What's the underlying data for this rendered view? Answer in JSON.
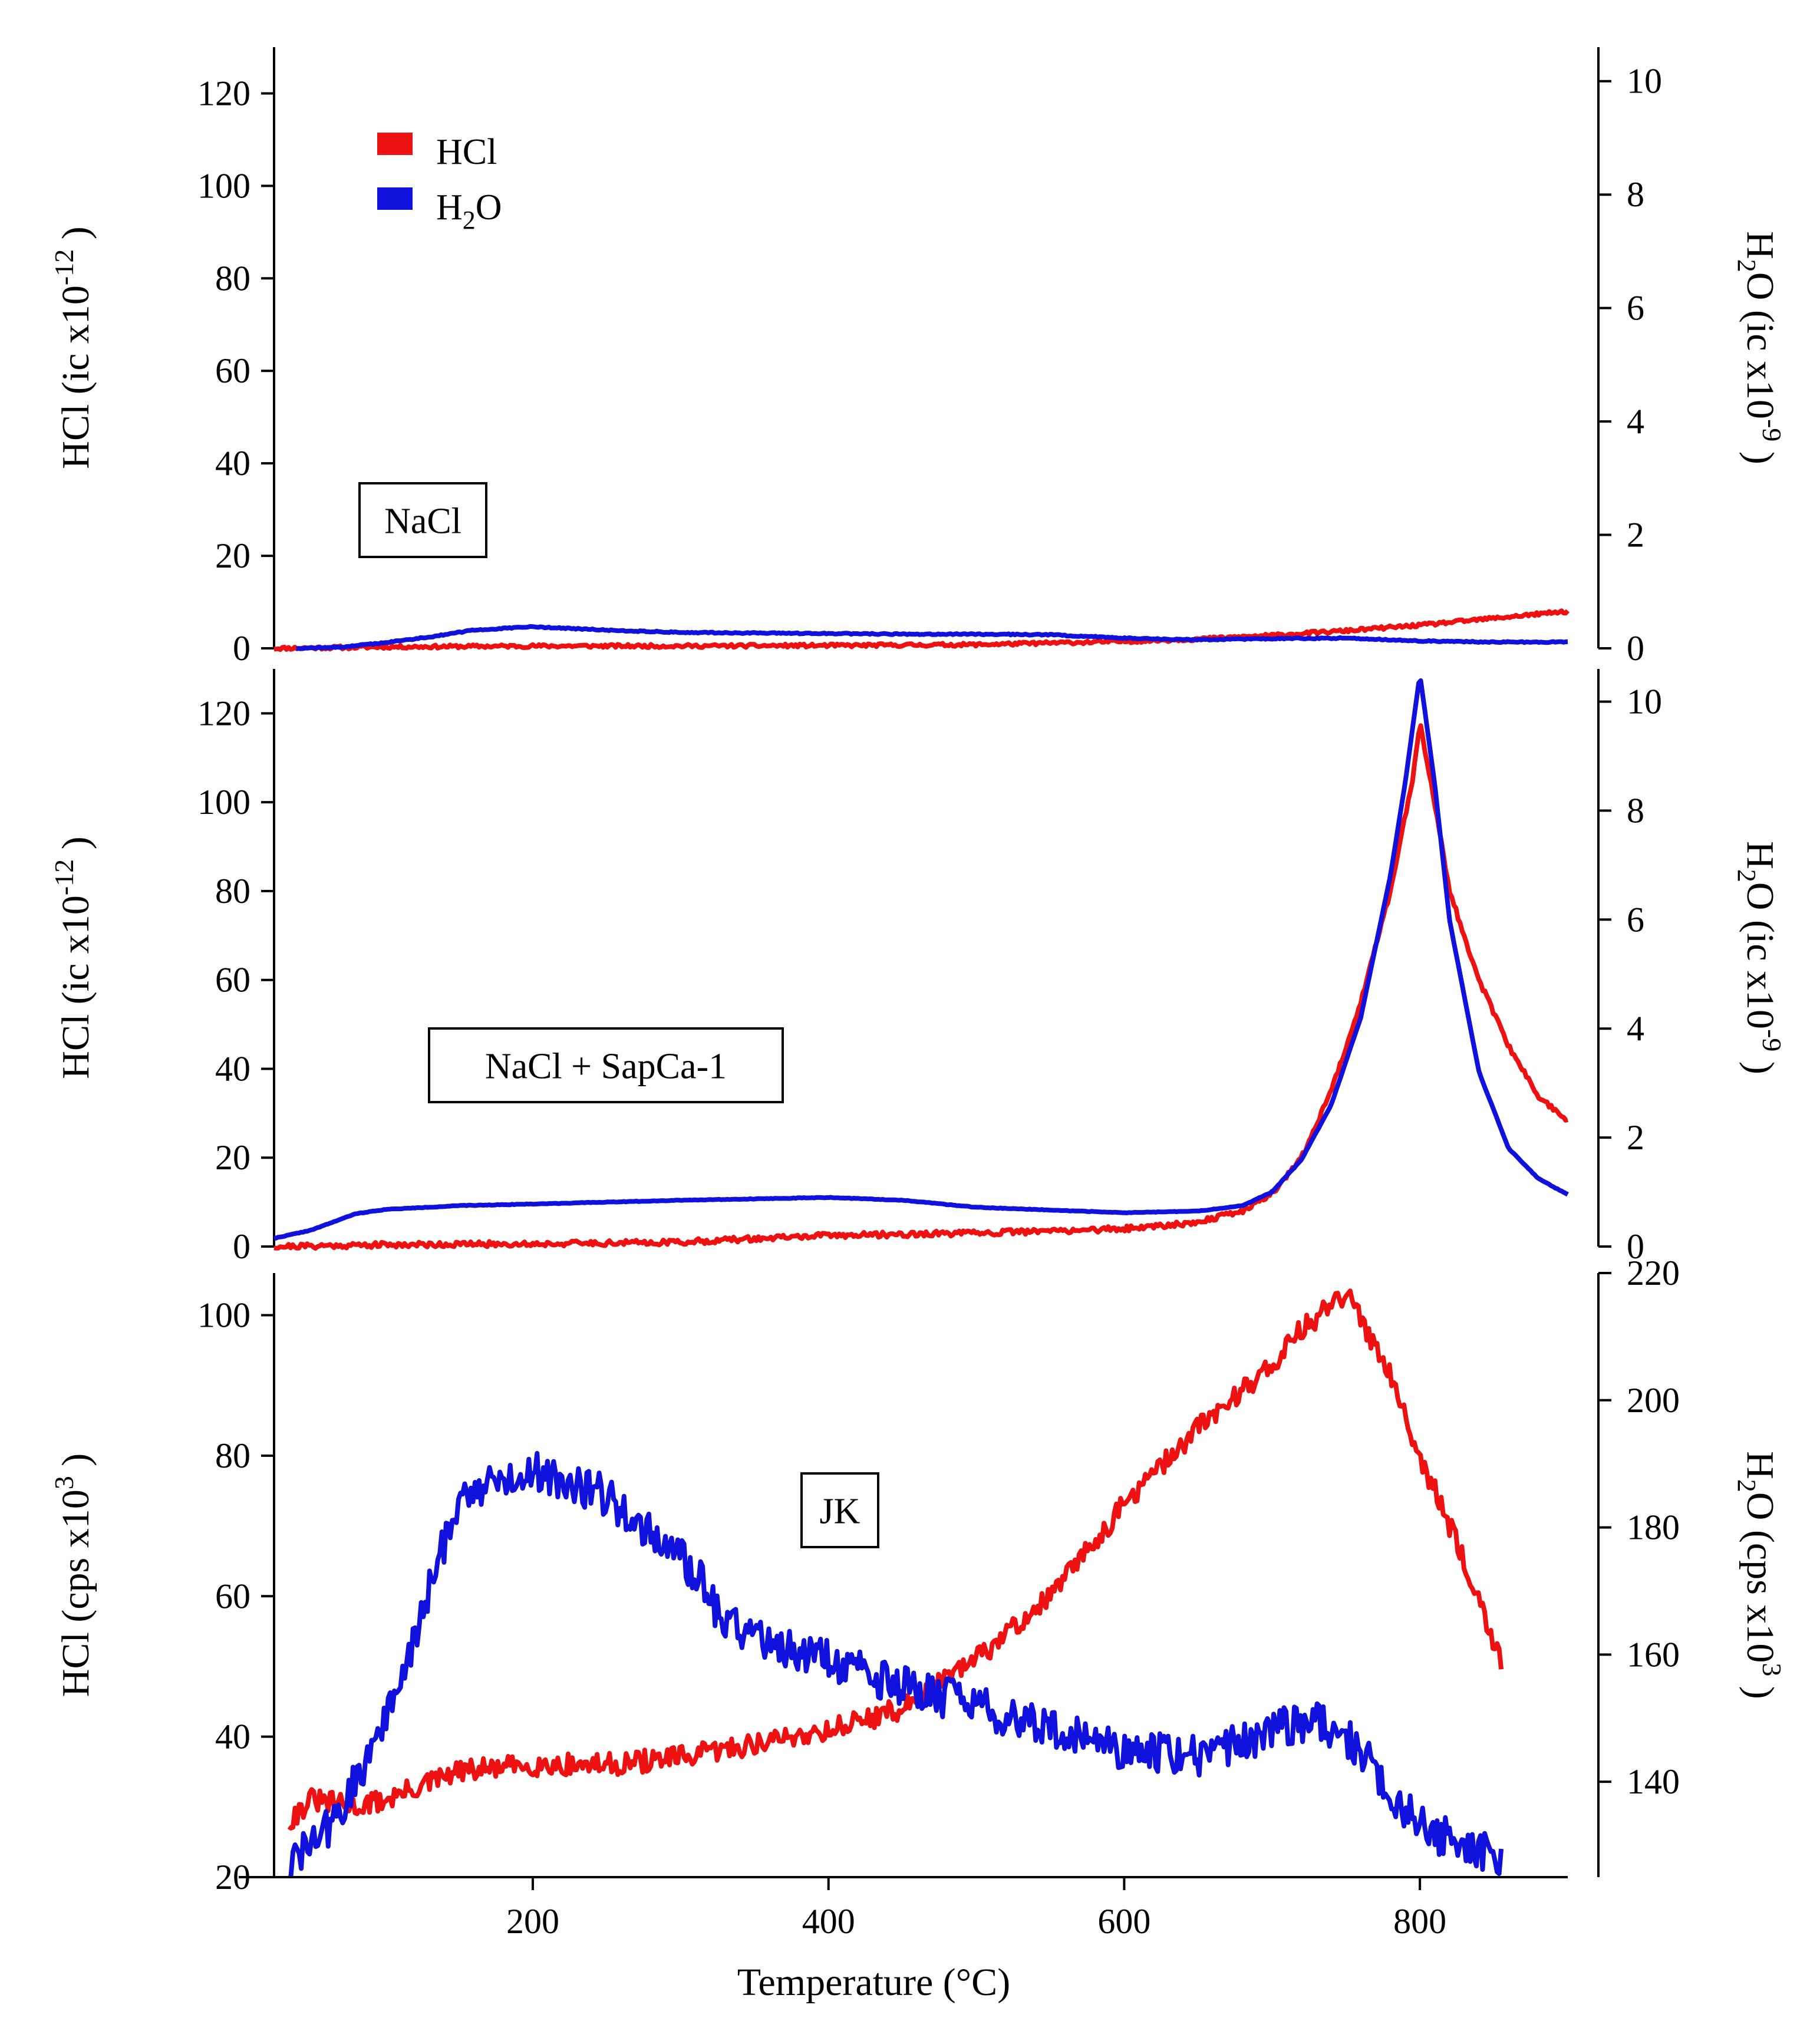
{
  "colors": {
    "hcl": "#ee1111",
    "h2o": "#1111dd",
    "axis": "#000000"
  },
  "x_axis": {
    "label": "Temperature (°C)",
    "range": [
      25,
      900
    ],
    "ticks": [
      200,
      400,
      600,
      800
    ]
  },
  "legend": [
    {
      "series": "HCl",
      "label": "HCl",
      "color": "#ee1111"
    },
    {
      "series": "H2O",
      "label": "H2O",
      "color": "#1111dd"
    }
  ],
  "chart_data": [
    {
      "type": "line",
      "sample_label": "NaCl",
      "x_label": "Temperature (°C)",
      "x_range": [
        25,
        900
      ],
      "left_axis": {
        "label": "HCl (ic x10-12 )",
        "base": "HCl (ic x10",
        "exp": "-12",
        "tail": " )",
        "range": [
          0,
          130
        ],
        "ticks": [
          0,
          20,
          40,
          60,
          80,
          100,
          120
        ]
      },
      "right_axis": {
        "label": "H2O (ic x10-9 )",
        "base": "H2O (ic x10",
        "exp": "-9",
        "tail": " )",
        "range": [
          0,
          10.6
        ],
        "ticks": [
          0,
          2,
          4,
          6,
          8,
          10
        ]
      },
      "series": [
        {
          "name": "HCl",
          "axis": "left",
          "noise": 0.35,
          "seed": 11,
          "x": [
            25,
            100,
            200,
            300,
            400,
            500,
            600,
            650,
            700,
            750,
            800,
            850,
            900
          ],
          "y": [
            0,
            0.3,
            0.5,
            0.5,
            0.6,
            0.8,
            1.5,
            2,
            2.8,
            3.8,
            5,
            6.5,
            8
          ]
        },
        {
          "name": "H2O",
          "axis": "right",
          "noise": 0.01,
          "seed": 12,
          "x": [
            40,
            70,
            100,
            130,
            160,
            200,
            250,
            300,
            350,
            400,
            450,
            500,
            550,
            600,
            650,
            700,
            750,
            800,
            850,
            900
          ],
          "y": [
            0,
            0.02,
            0.1,
            0.2,
            0.32,
            0.38,
            0.32,
            0.28,
            0.27,
            0.26,
            0.25,
            0.25,
            0.24,
            0.18,
            0.15,
            0.17,
            0.18,
            0.13,
            0.11,
            0.11
          ]
        }
      ]
    },
    {
      "type": "line",
      "sample_label": "NaCl + SapCa-1",
      "x_label": "Temperature (°C)",
      "x_range": [
        25,
        900
      ],
      "left_axis": {
        "label": "HCl (ic x10-12 )",
        "base": "HCl (ic x10",
        "exp": "-12",
        "tail": " )",
        "range": [
          0,
          130
        ],
        "ticks": [
          0,
          20,
          40,
          60,
          80,
          100,
          120
        ]
      },
      "right_axis": {
        "label": "H2O (ic x10-9 )",
        "base": "H2O (ic x10",
        "exp": "-9",
        "tail": " )",
        "range": [
          0,
          10.6
        ],
        "ticks": [
          0,
          2,
          4,
          6,
          8,
          10
        ]
      },
      "series": [
        {
          "name": "HCl",
          "axis": "left",
          "noise": 0.6,
          "seed": 21,
          "x": [
            25,
            100,
            200,
            300,
            400,
            500,
            600,
            650,
            680,
            700,
            720,
            740,
            760,
            780,
            795,
            800,
            810,
            820,
            840,
            860,
            880,
            900
          ],
          "y": [
            0,
            0.4,
            0.6,
            1,
            2.5,
            3,
            4,
            5.5,
            8,
            12,
            20,
            35,
            55,
            80,
            105,
            118,
            100,
            80,
            60,
            45,
            34,
            28
          ]
        },
        {
          "name": "H2O",
          "axis": "right",
          "noise": 0.005,
          "seed": 22,
          "x": [
            25,
            50,
            80,
            100,
            150,
            200,
            300,
            400,
            450,
            500,
            550,
            600,
            650,
            680,
            700,
            720,
            740,
            760,
            780,
            790,
            800,
            810,
            820,
            840,
            860,
            880,
            900
          ],
          "y": [
            0.15,
            0.3,
            0.6,
            0.68,
            0.75,
            0.78,
            0.85,
            0.9,
            0.85,
            0.72,
            0.67,
            0.62,
            0.65,
            0.75,
            1,
            1.6,
            2.6,
            4.2,
            6.8,
            8.5,
            10.5,
            8.5,
            6,
            3.2,
            1.8,
            1.25,
            0.95
          ]
        }
      ]
    },
    {
      "type": "line",
      "sample_label": "JK",
      "x_label": "Temperature (°C)",
      "x_range": [
        25,
        900
      ],
      "left_axis": {
        "label": "HCl (cps x103 )",
        "base": "HCl (cps x10",
        "exp": "3",
        "tail": " )",
        "range": [
          20,
          106
        ],
        "ticks": [
          20,
          40,
          60,
          80,
          100
        ]
      },
      "right_axis": {
        "label": "H2O (cps x103 )",
        "base": "H2O (cps x10",
        "exp": "3",
        "tail": " )",
        "range": [
          125,
          220
        ],
        "ticks": [
          140,
          160,
          180,
          200,
          220
        ]
      },
      "series": [
        {
          "name": "HCl",
          "axis": "left",
          "noise": 1.6,
          "seed": 31,
          "x": [
            35,
            50,
            80,
            100,
            150,
            200,
            250,
            300,
            350,
            400,
            450,
            500,
            550,
            600,
            650,
            700,
            720,
            750,
            780,
            800,
            820,
            840,
            855
          ],
          "y": [
            28,
            31,
            30,
            31,
            35,
            36,
            36,
            37,
            39,
            41,
            44,
            51,
            60,
            73,
            84,
            93,
            98,
            103,
            92,
            80,
            70,
            60,
            50
          ]
        },
        {
          "name": "H2O",
          "axis": "right",
          "noise": 3.2,
          "seed": 32,
          "x": [
            35,
            50,
            70,
            90,
            110,
            130,
            150,
            200,
            250,
            290,
            310,
            330,
            350,
            400,
            450,
            500,
            550,
            600,
            650,
            700,
            730,
            760,
            780,
            800,
            830,
            855
          ],
          "y": [
            127,
            130,
            135,
            145,
            155,
            170,
            185,
            189,
            185,
            177,
            173,
            165,
            163,
            159,
            155,
            152,
            148,
            145,
            144,
            148,
            150,
            145,
            138,
            133,
            130,
            128
          ]
        }
      ]
    }
  ]
}
